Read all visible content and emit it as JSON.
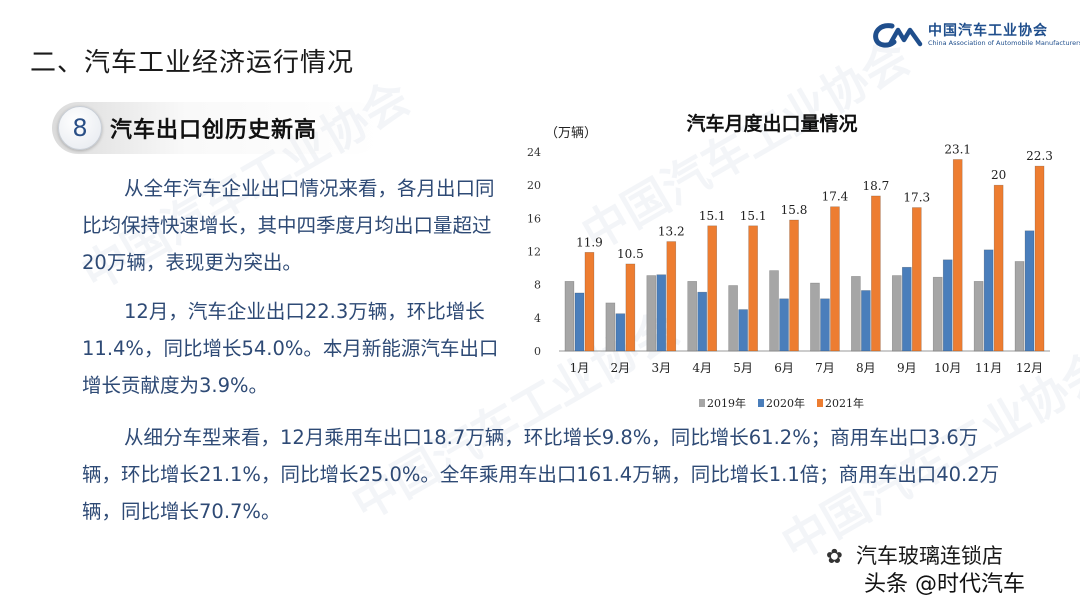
{
  "slide": {
    "section_title": "二、汽车工业经济运行情况",
    "badge_number": "8",
    "badge_title": "汽车出口创历史新高",
    "paragraphs": [
      "从全年汽车企业出口情况来看，各月出口同比均保持快速增长，其中四季度月均出口量超过20万辆，表现更为突出。",
      "12月，汽车企业出口22.3万辆，环比增长11.4%，同比增长54.0%。本月新能源汽车出口增长贡献度为3.9%。",
      "从细分车型来看，12月乘用车出口18.7万辆，环比增长9.8%，同比增长61.2%；商用车出口3.6万辆，环比增长21.1%，同比增长25.0%。全年乘用车出口161.4万辆，同比增长1.1倍；商用车出口40.2万辆，同比增长70.7%。"
    ]
  },
  "logo": {
    "cn": "中国汽车工业协会",
    "en": "China Association of Automobile Manufacturers",
    "mark": "CM",
    "color": "#1f4e8c"
  },
  "watermark_text": "中国汽车工业协会",
  "chart_data": {
    "type": "bar",
    "title": "汽车月度出口量情况",
    "ylabel": "（万辆）",
    "ylim": [
      0,
      24
    ],
    "yticks": [
      0,
      4,
      8,
      12,
      16,
      20,
      24
    ],
    "categories": [
      "1月",
      "2月",
      "3月",
      "4月",
      "5月",
      "6月",
      "7月",
      "8月",
      "9月",
      "10月",
      "11月",
      "12月"
    ],
    "series": [
      {
        "name": "2019年",
        "color": "#a6a6a6",
        "values": [
          8.4,
          5.8,
          9.1,
          8.4,
          7.9,
          9.7,
          8.2,
          9.0,
          9.1,
          8.9,
          8.4,
          10.8
        ]
      },
      {
        "name": "2020年",
        "color": "#4a7ebb",
        "values": [
          7.0,
          4.5,
          9.2,
          7.1,
          5.0,
          6.3,
          6.3,
          7.3,
          10.1,
          11.0,
          12.2,
          14.5
        ]
      },
      {
        "name": "2021年",
        "color": "#ed7d31",
        "values": [
          11.9,
          10.5,
          13.2,
          15.1,
          15.1,
          15.8,
          17.4,
          18.7,
          17.3,
          23.1,
          20,
          22.3
        ]
      }
    ],
    "data_labels": [
      "11.9",
      "10.5",
      "13.2",
      "15.1",
      "15.1",
      "15.8",
      "17.4",
      "18.7",
      "17.3",
      "23.1",
      "20",
      "22.3"
    ],
    "legend_position": "bottom",
    "grid": false
  },
  "footer": {
    "icon": "wechat-icon",
    "store": "汽车玻璃连锁店",
    "source": "头条 @时代汽车"
  }
}
